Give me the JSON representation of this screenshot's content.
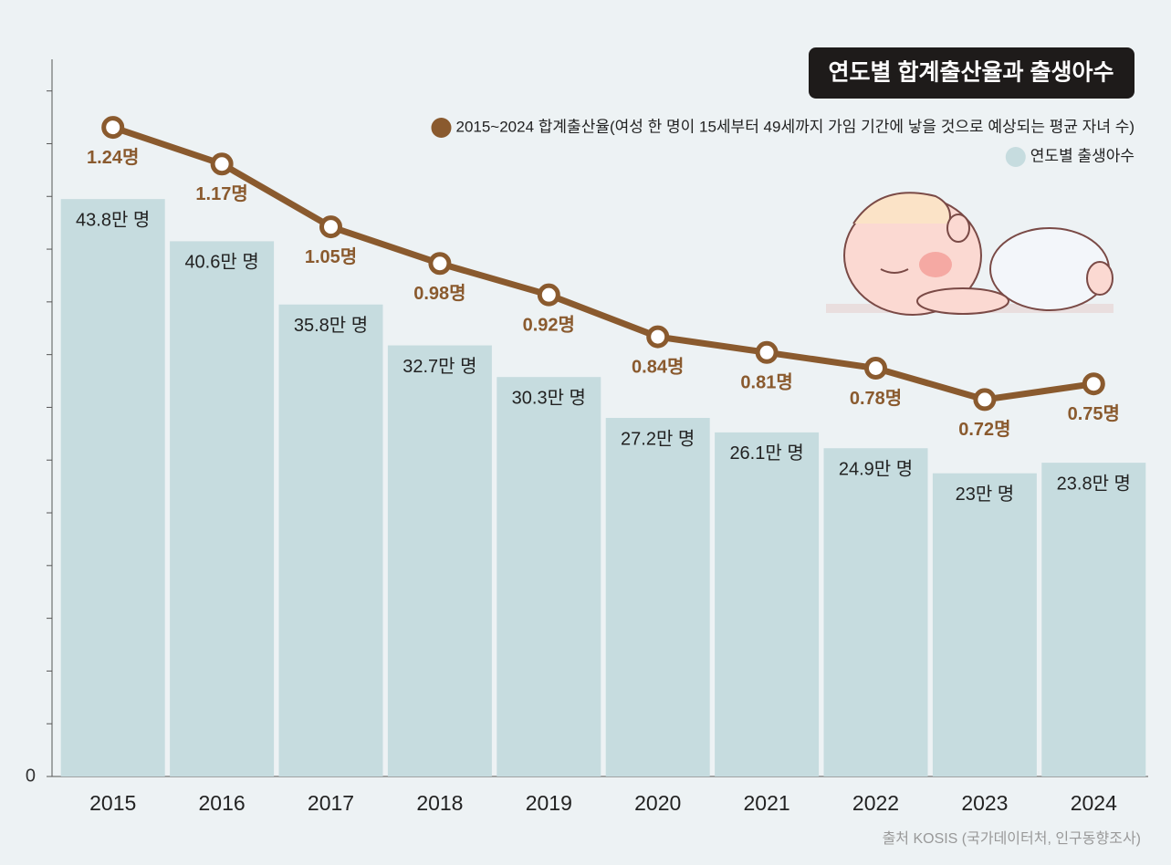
{
  "chart_data": {
    "type": "bar",
    "title": "연도별 합계출산율과 출생아수",
    "categories": [
      "2015",
      "2016",
      "2017",
      "2018",
      "2019",
      "2020",
      "2021",
      "2022",
      "2023",
      "2024"
    ],
    "series": [
      {
        "name": "연도별 출생아수",
        "type": "bar",
        "color": "#c6dcdf",
        "values": [
          43.8,
          40.6,
          35.8,
          32.7,
          30.3,
          27.2,
          26.1,
          24.9,
          23,
          23.8
        ],
        "value_labels": [
          "43.8만 명",
          "40.6만 명",
          "35.8만 명",
          "32.7만 명",
          "30.3만 명",
          "27.2만 명",
          "26.1만 명",
          "24.9만 명",
          "23만 명",
          "23.8만 명"
        ]
      },
      {
        "name": "2015~2024 합계출산율(여성 한 명이 15세부터 49세까지 가임 기간에 낳을 것으로 예상되는 평균 자녀 수)",
        "type": "line",
        "axis": "y2",
        "color": "#8a5a2e",
        "values": [
          1.24,
          1.17,
          1.05,
          0.98,
          0.92,
          0.84,
          0.81,
          0.78,
          0.72,
          0.75
        ],
        "value_labels": [
          "1.24명",
          "1.17명",
          "1.05명",
          "0.98명",
          "0.92명",
          "0.84명",
          "0.81명",
          "0.78명",
          "0.72명",
          "0.75명"
        ]
      }
    ],
    "ylim": [
      0,
      54.4
    ],
    "yticks": [
      0
    ],
    "y_minor_ticks": [
      4,
      8,
      12,
      16,
      20,
      24,
      28,
      32,
      36,
      40,
      44,
      48,
      52
    ],
    "y2lim": [
      0,
      1.37
    ],
    "source": "출처 KOSIS (국가데이터처, 인구동향조사)"
  }
}
